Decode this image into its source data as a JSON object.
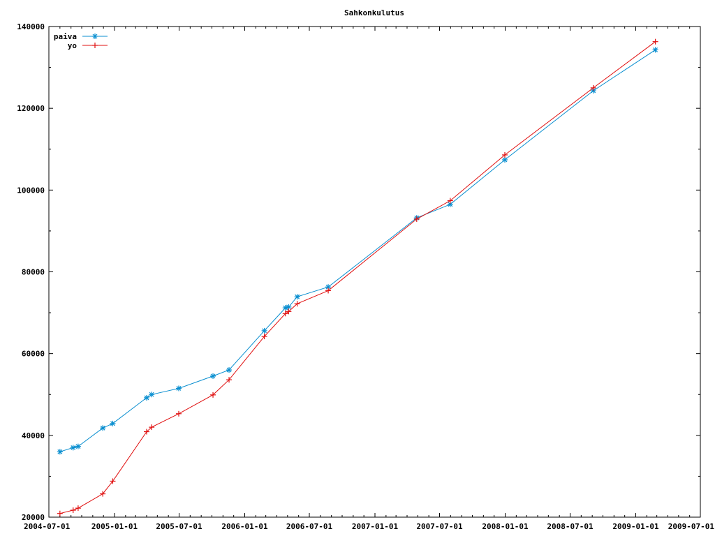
{
  "chart_data": {
    "type": "line",
    "title": "Sahkonkulutus",
    "xlabel": "",
    "ylabel": "",
    "x_axis": "date",
    "xlim": [
      "2004-07-01",
      "2009-07-01"
    ],
    "ylim": [
      20000,
      140000
    ],
    "x_tick_labels": [
      "2004-07-01",
      "2005-01-01",
      "2005-07-01",
      "2006-01-01",
      "2006-07-01",
      "2007-01-01",
      "2007-07-01",
      "2008-01-01",
      "2008-07-01",
      "2009-01-01",
      "2009-07-01"
    ],
    "y_tick_labels": [
      "20000",
      "40000",
      "60000",
      "80000",
      "100000",
      "120000",
      "140000"
    ],
    "legend_position": "top-left",
    "grid": false,
    "series": [
      {
        "name": "paiva",
        "color": "#0a8fd0",
        "marker": "star",
        "points": [
          {
            "x": "2004-08-01",
            "y": 36000
          },
          {
            "x": "2004-09-07",
            "y": 37000
          },
          {
            "x": "2004-09-21",
            "y": 37300
          },
          {
            "x": "2004-11-29",
            "y": 41800
          },
          {
            "x": "2004-12-27",
            "y": 42900
          },
          {
            "x": "2005-04-01",
            "y": 49200
          },
          {
            "x": "2005-04-15",
            "y": 50000
          },
          {
            "x": "2005-06-30",
            "y": 51500
          },
          {
            "x": "2005-10-04",
            "y": 54500
          },
          {
            "x": "2005-11-18",
            "y": 56000
          },
          {
            "x": "2006-02-25",
            "y": 65600
          },
          {
            "x": "2006-04-25",
            "y": 71200
          },
          {
            "x": "2006-05-04",
            "y": 71400
          },
          {
            "x": "2006-05-28",
            "y": 73900
          },
          {
            "x": "2006-08-23",
            "y": 76300
          },
          {
            "x": "2007-04-28",
            "y": 93200
          },
          {
            "x": "2007-07-31",
            "y": 96500
          },
          {
            "x": "2007-12-31",
            "y": 107400
          },
          {
            "x": "2008-09-04",
            "y": 124300
          },
          {
            "x": "2009-02-25",
            "y": 134300
          }
        ]
      },
      {
        "name": "yo",
        "color": "#e01010",
        "marker": "plus",
        "points": [
          {
            "x": "2004-08-01",
            "y": 20900
          },
          {
            "x": "2004-09-07",
            "y": 21700
          },
          {
            "x": "2004-09-21",
            "y": 22200
          },
          {
            "x": "2004-11-29",
            "y": 25700
          },
          {
            "x": "2004-12-27",
            "y": 28800
          },
          {
            "x": "2005-04-01",
            "y": 40900
          },
          {
            "x": "2005-04-15",
            "y": 42000
          },
          {
            "x": "2005-06-30",
            "y": 45300
          },
          {
            "x": "2005-10-04",
            "y": 49900
          },
          {
            "x": "2005-11-18",
            "y": 53600
          },
          {
            "x": "2006-02-25",
            "y": 64200
          },
          {
            "x": "2006-04-25",
            "y": 69800
          },
          {
            "x": "2006-05-04",
            "y": 70300
          },
          {
            "x": "2006-05-28",
            "y": 72200
          },
          {
            "x": "2006-08-23",
            "y": 75400
          },
          {
            "x": "2007-04-28",
            "y": 92900
          },
          {
            "x": "2007-07-31",
            "y": 97400
          },
          {
            "x": "2007-12-31",
            "y": 108600
          },
          {
            "x": "2008-09-04",
            "y": 125000
          },
          {
            "x": "2009-02-25",
            "y": 136300
          }
        ]
      }
    ]
  }
}
